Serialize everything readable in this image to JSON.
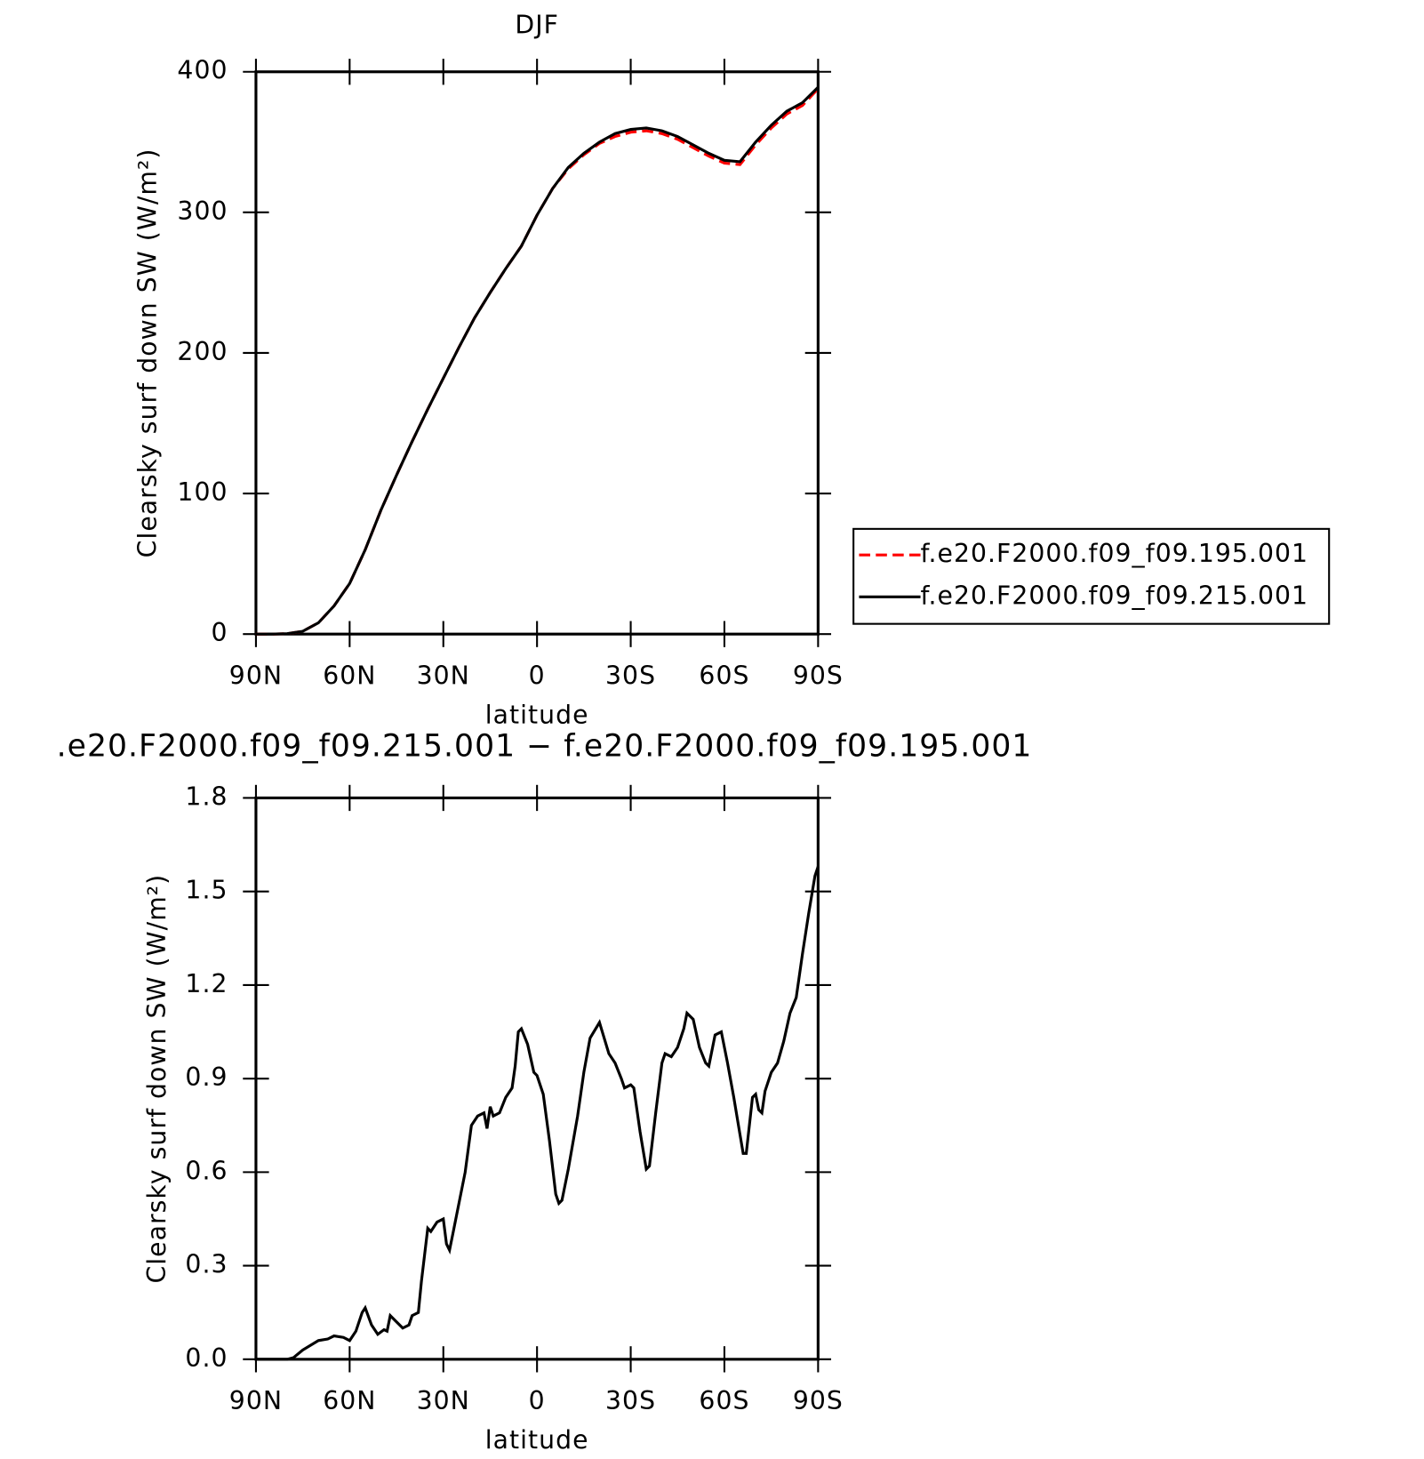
{
  "chart_data": [
    {
      "type": "line",
      "title": "DJF",
      "xlabel": "latitude",
      "ylabel": "Clearsky surf down SW (W/m²)",
      "x": [
        90,
        85,
        80,
        75,
        70,
        65,
        60,
        55,
        50,
        45,
        40,
        35,
        30,
        25,
        20,
        15,
        10,
        5,
        0,
        -5,
        -10,
        -15,
        -20,
        -25,
        -30,
        -35,
        -40,
        -45,
        -50,
        -55,
        -60,
        -65,
        -70,
        -75,
        -80,
        -85,
        -90
      ],
      "series": [
        {
          "name": "f.e20.F2000.f09_f09.195.001",
          "color": "#ff0000",
          "dash": true,
          "values": [
            0,
            0,
            0.3,
            2,
            8,
            20,
            36,
            60,
            88,
            113,
            137,
            160,
            182,
            204,
            225,
            243,
            260,
            276,
            298,
            317,
            331,
            341,
            349,
            354,
            357,
            358,
            356,
            352,
            346,
            340,
            335,
            334,
            348,
            360,
            370,
            376,
            388
          ]
        },
        {
          "name": "f.e20.F2000.f09_f09.215.001",
          "color": "#000000",
          "dash": false,
          "values": [
            0,
            0,
            0.3,
            2,
            8,
            20,
            36,
            60,
            88,
            113,
            137,
            160,
            182,
            204,
            225,
            243,
            260,
            276,
            298,
            317,
            332,
            342,
            350,
            356,
            359,
            360,
            358,
            354,
            348,
            342,
            337,
            336,
            350,
            362,
            372,
            378,
            389
          ]
        }
      ],
      "xlim": [
        90,
        -90
      ],
      "xticks": [
        {
          "value": 90,
          "label": "90N"
        },
        {
          "value": 60,
          "label": "60N"
        },
        {
          "value": 30,
          "label": "30N"
        },
        0,
        {
          "value": -30,
          "label": "30S"
        },
        {
          "value": -60,
          "label": "60S"
        },
        {
          "value": -90,
          "label": "90S"
        }
      ],
      "ylim": [
        0,
        400
      ],
      "yticks": [
        0,
        100,
        200,
        300,
        400
      ],
      "legend": "right"
    },
    {
      "type": "line",
      "title": ".e20.F2000.f09_f09.215.001 − f.e20.F2000.f09_f09.195.001",
      "xlabel": "latitude",
      "ylabel": "Clearsky surf down SW (W/m²)",
      "x": [
        90,
        85,
        80,
        78,
        75,
        70,
        67,
        65,
        62,
        60,
        58,
        56,
        55,
        53,
        51,
        49,
        48,
        47,
        45,
        43,
        41,
        40,
        38,
        37,
        35,
        34,
        32,
        30,
        29,
        28,
        27,
        25,
        23,
        21,
        19,
        17,
        16,
        15,
        14,
        12,
        10,
        8,
        7,
        6,
        5,
        3,
        1,
        0,
        -2,
        -4,
        -6,
        -7,
        -8,
        -10,
        -13,
        -15,
        -17,
        -20,
        -23,
        -25,
        -27,
        -28,
        -30,
        -31,
        -33,
        -35,
        -36,
        -38,
        -40,
        -41,
        -43,
        -45,
        -47,
        -48,
        -50,
        -52,
        -54,
        -55,
        -57,
        -59,
        -61,
        -63,
        -65,
        -66,
        -67,
        -69,
        -70,
        -71,
        -72,
        -73,
        -75,
        -77,
        -79,
        -81,
        -83,
        -85,
        -87,
        -89,
        -90
      ],
      "color": "#000000",
      "values": [
        0,
        0,
        0,
        0.005,
        0.03,
        0.06,
        0.065,
        0.075,
        0.07,
        0.06,
        0.09,
        0.15,
        0.165,
        0.11,
        0.08,
        0.095,
        0.09,
        0.14,
        0.12,
        0.1,
        0.11,
        0.14,
        0.15,
        0.25,
        0.42,
        0.41,
        0.44,
        0.45,
        0.37,
        0.35,
        0.4,
        0.5,
        0.6,
        0.75,
        0.78,
        0.79,
        0.74,
        0.81,
        0.78,
        0.79,
        0.84,
        0.87,
        0.94,
        1.05,
        1.06,
        1.01,
        0.92,
        0.91,
        0.85,
        0.7,
        0.53,
        0.5,
        0.51,
        0.61,
        0.78,
        0.92,
        1.03,
        1.08,
        0.98,
        0.95,
        0.9,
        0.87,
        0.88,
        0.87,
        0.73,
        0.61,
        0.62,
        0.79,
        0.95,
        0.98,
        0.97,
        1.0,
        1.06,
        1.11,
        1.09,
        1.0,
        0.95,
        0.94,
        1.04,
        1.05,
        0.95,
        0.84,
        0.72,
        0.66,
        0.66,
        0.84,
        0.85,
        0.8,
        0.79,
        0.86,
        0.92,
        0.95,
        1.02,
        1.11,
        1.16,
        1.3,
        1.43,
        1.55,
        1.58
      ],
      "xlim": [
        90,
        -90
      ],
      "xticks": [
        {
          "value": 90,
          "label": "90N"
        },
        {
          "value": 60,
          "label": "60N"
        },
        {
          "value": 30,
          "label": "30N"
        },
        0,
        {
          "value": -30,
          "label": "30S"
        },
        {
          "value": -60,
          "label": "60S"
        },
        {
          "value": -90,
          "label": "90S"
        }
      ],
      "ylim": [
        0,
        1.8
      ],
      "yticks": [
        {
          "value": 0,
          "label": "0.0"
        },
        0.3,
        0.6,
        0.9,
        1.2,
        1.5,
        1.8
      ]
    }
  ]
}
